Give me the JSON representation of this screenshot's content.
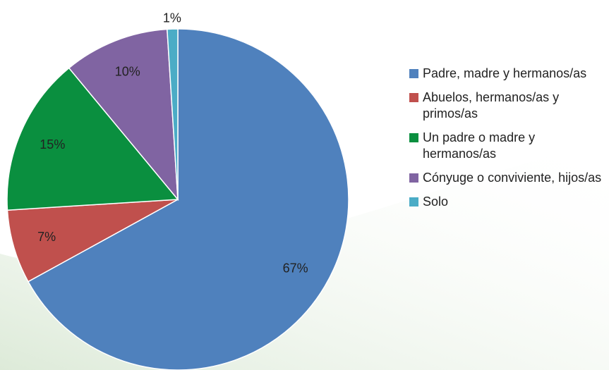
{
  "chart_data": {
    "type": "pie",
    "categories": [
      "Padre, madre y hermanos/as",
      "Abuelos, hermanos/as y primos/as",
      "Un padre o madre y hermanos/as",
      "Cónyuge o conviviente, hijos/as",
      "Solo"
    ],
    "values": [
      67,
      7,
      15,
      10,
      1
    ],
    "value_labels": [
      "67%",
      "7%",
      "15%",
      "10%",
      "1%"
    ],
    "colors": [
      "#4f81bd",
      "#c0504d",
      "#0a8f3f",
      "#8064a2",
      "#4bacc6"
    ],
    "legend": "right"
  }
}
